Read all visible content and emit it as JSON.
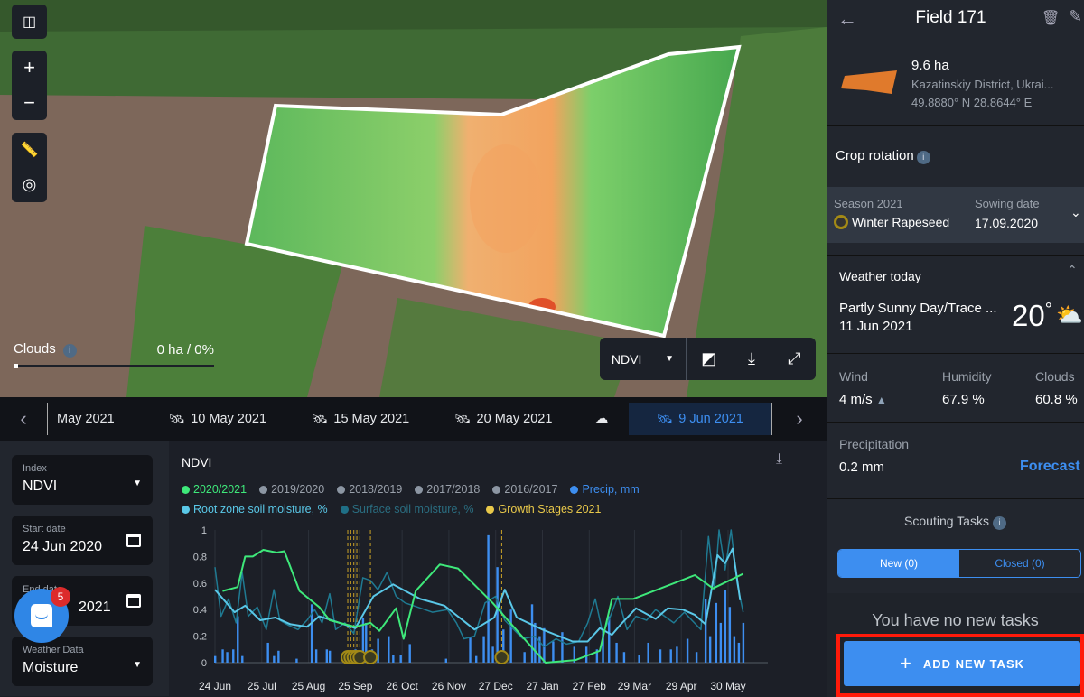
{
  "map": {
    "controls": {
      "compare": "compare-icon",
      "zoom_in": "+",
      "zoom_out": "−"
    },
    "clouds": {
      "label": "Clouds",
      "value": "0 ha / 0%",
      "fraction": 0
    },
    "toolbar": {
      "index": "NDVI"
    },
    "field_colors": {
      "low": "#f0a868",
      "mid": "#a6d96a",
      "high": "#4caf50",
      "border": "#ffffff"
    }
  },
  "datebar": {
    "items": [
      {
        "label": "May 2021",
        "icon": ""
      },
      {
        "label": "10 May 2021",
        "icon": "satellite-icon"
      },
      {
        "label": "15 May 2021",
        "icon": "satellite-icon"
      },
      {
        "label": "20 May 2021",
        "icon": "satellite-icon"
      },
      {
        "label": "",
        "icon": "cloud-icon"
      },
      {
        "label": "9 Jun 2021",
        "icon": "satellite-icon",
        "active": true
      }
    ]
  },
  "filters": {
    "index": {
      "label": "Index",
      "value": "NDVI"
    },
    "start": {
      "label": "Start date",
      "value": "24 Jun 2020"
    },
    "end": {
      "label": "End date",
      "value": "2021"
    },
    "weather": {
      "label": "Weather Data",
      "value": "Moisture"
    }
  },
  "chat": {
    "badge": "5"
  },
  "chart_data": {
    "type": "line",
    "title": "NDVI",
    "ylim": [
      0,
      1
    ],
    "yticks": [
      "0",
      "0.2",
      "0.4",
      "0.6",
      "0.8",
      "1"
    ],
    "xticks": [
      [
        "2020-06-24",
        "24 Jun"
      ],
      [
        "2020-07-25",
        "25 Jul"
      ],
      [
        "2020-08-25",
        "25 Aug"
      ],
      [
        "2020-09-25",
        "25 Sep"
      ],
      [
        "2020-10-26",
        "26 Oct"
      ],
      [
        "2020-11-26",
        "26 Nov"
      ],
      [
        "2020-12-27",
        "27 Dec"
      ],
      [
        "2021-01-27",
        "27 Jan"
      ],
      [
        "2021-02-27",
        "27 Feb"
      ],
      [
        "2021-03-29",
        "29 Mar"
      ],
      [
        "2021-04-29",
        "29 Apr"
      ],
      [
        "2021-05-30",
        "30 May"
      ]
    ],
    "xlim": [
      "2020-06-24",
      "2021-06-24"
    ],
    "legend": [
      {
        "name": "2020/2021",
        "color": "#3ee87a"
      },
      {
        "name": "2019/2020",
        "color": "#8c96a3"
      },
      {
        "name": "2018/2019",
        "color": "#8c96a3"
      },
      {
        "name": "2017/2018",
        "color": "#8c96a3"
      },
      {
        "name": "2016/2017",
        "color": "#8c96a3"
      },
      {
        "name": "Precip, mm",
        "color": "#3d8ef0"
      },
      {
        "name": "Root zone soil moisture, %",
        "color": "#5ac8e8"
      },
      {
        "name": "Surface soil moisture, %",
        "color": "#1f6f86"
      },
      {
        "name": "Growth Stages 2021",
        "color": "#e8c84a"
      }
    ],
    "series": [
      {
        "name": "Surface soil moisture, %",
        "color": "#1f7a92",
        "points": [
          [
            "2020-06-24",
            0.72
          ],
          [
            "2020-06-28",
            0.35
          ],
          [
            "2020-07-03",
            0.48
          ],
          [
            "2020-07-08",
            0.3
          ],
          [
            "2020-07-12",
            0.68
          ],
          [
            "2020-07-16",
            0.35
          ],
          [
            "2020-07-22",
            0.42
          ],
          [
            "2020-07-28",
            0.25
          ],
          [
            "2020-08-02",
            0.55
          ],
          [
            "2020-08-06",
            0.32
          ],
          [
            "2020-08-12",
            0.28
          ],
          [
            "2020-08-18",
            0.25
          ],
          [
            "2020-08-24",
            0.32
          ],
          [
            "2020-08-29",
            0.4
          ],
          [
            "2020-09-03",
            0.3
          ],
          [
            "2020-09-08",
            0.52
          ],
          [
            "2020-09-12",
            0.25
          ],
          [
            "2020-09-18",
            0.3
          ],
          [
            "2020-09-24",
            0.22
          ],
          [
            "2020-09-30",
            0.64
          ],
          [
            "2020-10-05",
            0.62
          ],
          [
            "2020-10-10",
            0.55
          ],
          [
            "2020-10-16",
            0.68
          ],
          [
            "2020-10-22",
            0.5
          ],
          [
            "2020-10-28",
            0.45
          ],
          [
            "2020-11-05",
            0.42
          ],
          [
            "2020-11-15",
            0.38
          ],
          [
            "2020-11-25",
            0.4
          ],
          [
            "2020-12-01",
            0.3
          ],
          [
            "2020-12-06",
            0.18
          ],
          [
            "2020-12-13",
            0.2
          ],
          [
            "2020-12-20",
            0.45
          ],
          [
            "2020-12-27",
            0.5
          ],
          [
            "2021-01-02",
            0.32
          ],
          [
            "2021-01-08",
            0.25
          ],
          [
            "2021-01-14",
            0.18
          ],
          [
            "2021-01-22",
            0.2
          ],
          [
            "2021-01-28",
            0.12
          ],
          [
            "2021-02-05",
            0.18
          ],
          [
            "2021-02-12",
            0.14
          ],
          [
            "2021-02-20",
            0.16
          ],
          [
            "2021-02-26",
            0.3
          ],
          [
            "2021-03-03",
            0.48
          ],
          [
            "2021-03-08",
            0.22
          ],
          [
            "2021-03-12",
            0.32
          ],
          [
            "2021-03-18",
            0.5
          ],
          [
            "2021-03-24",
            0.25
          ],
          [
            "2021-03-30",
            0.35
          ],
          [
            "2021-04-06",
            0.32
          ],
          [
            "2021-04-12",
            0.4
          ],
          [
            "2021-04-18",
            0.35
          ],
          [
            "2021-04-24",
            0.3
          ],
          [
            "2021-05-01",
            0.38
          ],
          [
            "2021-05-06",
            0.32
          ],
          [
            "2021-05-12",
            0.25
          ],
          [
            "2021-05-17",
            0.95
          ],
          [
            "2021-05-21",
            0.55
          ],
          [
            "2021-05-24",
            1.0
          ],
          [
            "2021-05-28",
            0.7
          ],
          [
            "2021-06-01",
            1.0
          ],
          [
            "2021-06-05",
            0.6
          ],
          [
            "2021-06-09",
            0.38
          ]
        ]
      },
      {
        "name": "Root zone soil moisture, %",
        "color": "#5ac8e8",
        "points": [
          [
            "2020-06-24",
            0.55
          ],
          [
            "2020-07-07",
            0.38
          ],
          [
            "2020-07-14",
            0.43
          ],
          [
            "2020-07-24",
            0.32
          ],
          [
            "2020-08-03",
            0.34
          ],
          [
            "2020-08-13",
            0.29
          ],
          [
            "2020-08-24",
            0.27
          ],
          [
            "2020-09-01",
            0.35
          ],
          [
            "2020-09-12",
            0.31
          ],
          [
            "2020-09-25",
            0.26
          ],
          [
            "2020-10-07",
            0.5
          ],
          [
            "2020-10-20",
            0.59
          ],
          [
            "2020-11-07",
            0.48
          ],
          [
            "2020-11-23",
            0.43
          ],
          [
            "2020-12-13",
            0.25
          ],
          [
            "2020-12-26",
            0.34
          ],
          [
            "2021-01-02",
            0.55
          ],
          [
            "2021-01-10",
            0.34
          ],
          [
            "2021-01-27",
            0.25
          ],
          [
            "2021-02-16",
            0.16
          ],
          [
            "2021-02-26",
            0.16
          ],
          [
            "2021-03-06",
            0.26
          ],
          [
            "2021-03-14",
            0.21
          ],
          [
            "2021-03-20",
            0.29
          ],
          [
            "2021-03-30",
            0.41
          ],
          [
            "2021-04-12",
            0.33
          ],
          [
            "2021-04-20",
            0.41
          ],
          [
            "2021-04-30",
            0.4
          ],
          [
            "2021-05-08",
            0.36
          ],
          [
            "2021-05-15",
            0.29
          ],
          [
            "2021-05-23",
            0.81
          ],
          [
            "2021-05-28",
            0.75
          ],
          [
            "2021-06-02",
            0.86
          ],
          [
            "2021-06-07",
            0.47
          ]
        ]
      },
      {
        "name": "2020/2021",
        "color": "#3ee87a",
        "points": [
          [
            "2020-06-29",
            0.54
          ],
          [
            "2020-07-09",
            0.57
          ],
          [
            "2020-07-14",
            0.8
          ],
          [
            "2020-07-19",
            0.8
          ],
          [
            "2020-07-26",
            0.85
          ],
          [
            "2020-08-04",
            0.83
          ],
          [
            "2020-08-09",
            0.84
          ],
          [
            "2020-08-19",
            0.54
          ],
          [
            "2020-09-01",
            0.42
          ],
          [
            "2020-09-08",
            0.32
          ],
          [
            "2020-09-25",
            0.27
          ],
          [
            "2020-10-05",
            0.3
          ],
          [
            "2020-10-11",
            0.24
          ],
          [
            "2020-10-22",
            0.41
          ],
          [
            "2020-10-27",
            0.18
          ],
          [
            "2020-11-04",
            0.54
          ],
          [
            "2020-11-20",
            0.74
          ],
          [
            "2020-12-02",
            0.71
          ],
          [
            "2020-12-25",
            0.45
          ],
          [
            "2021-01-11",
            0.23
          ],
          [
            "2021-01-29",
            0.0
          ],
          [
            "2021-02-18",
            0.02
          ],
          [
            "2021-03-06",
            0.09
          ],
          [
            "2021-03-14",
            0.48
          ],
          [
            "2021-03-28",
            0.48
          ],
          [
            "2021-05-08",
            0.66
          ],
          [
            "2021-05-20",
            0.56
          ],
          [
            "2021-06-09",
            0.67
          ]
        ]
      }
    ],
    "precip": [
      [
        "2020-06-24",
        0.05
      ],
      [
        "2020-06-29",
        0.1
      ],
      [
        "2020-07-02",
        0.08
      ],
      [
        "2020-07-06",
        0.1
      ],
      [
        "2020-07-09",
        0.35
      ],
      [
        "2020-07-12",
        0.05
      ],
      [
        "2020-07-29",
        0.15
      ],
      [
        "2020-08-02",
        0.05
      ],
      [
        "2020-08-05",
        0.09
      ],
      [
        "2020-08-17",
        0.03
      ],
      [
        "2020-08-27",
        0.44
      ],
      [
        "2020-08-30",
        0.1
      ],
      [
        "2020-09-06",
        0.1
      ],
      [
        "2020-09-08",
        0.09
      ],
      [
        "2020-09-25",
        0.1
      ],
      [
        "2020-09-30",
        0.34
      ],
      [
        "2020-10-02",
        0.3
      ],
      [
        "2020-10-06",
        0.1
      ],
      [
        "2020-10-10",
        0.18
      ],
      [
        "2020-10-17",
        0.2
      ],
      [
        "2020-10-20",
        0.06
      ],
      [
        "2020-10-25",
        0.06
      ],
      [
        "2020-10-31",
        0.14
      ],
      [
        "2020-11-24",
        0.03
      ],
      [
        "2020-12-10",
        0.19
      ],
      [
        "2020-12-14",
        0.05
      ],
      [
        "2020-12-19",
        0.2
      ],
      [
        "2020-12-22",
        0.96
      ],
      [
        "2020-12-25",
        0.12
      ],
      [
        "2020-12-28",
        0.72
      ],
      [
        "2021-01-01",
        0.25
      ],
      [
        "2021-01-06",
        0.4
      ],
      [
        "2021-01-15",
        0.08
      ],
      [
        "2021-01-20",
        0.44
      ],
      [
        "2021-01-22",
        0.3
      ],
      [
        "2021-01-25",
        0.2
      ],
      [
        "2021-01-28",
        0.26
      ],
      [
        "2021-02-03",
        0.16
      ],
      [
        "2021-02-09",
        0.23
      ],
      [
        "2021-02-17",
        0.12
      ],
      [
        "2021-02-25",
        0.12
      ],
      [
        "2021-03-04",
        0.1
      ],
      [
        "2021-03-08",
        0.23
      ],
      [
        "2021-03-12",
        0.35
      ],
      [
        "2021-03-17",
        0.15
      ],
      [
        "2021-03-22",
        0.08
      ],
      [
        "2021-04-01",
        0.06
      ],
      [
        "2021-04-07",
        0.15
      ],
      [
        "2021-04-15",
        0.1
      ],
      [
        "2021-04-22",
        0.1
      ],
      [
        "2021-04-26",
        0.12
      ],
      [
        "2021-05-03",
        0.18
      ],
      [
        "2021-05-09",
        0.08
      ],
      [
        "2021-05-15",
        0.48
      ],
      [
        "2021-05-18",
        0.2
      ],
      [
        "2021-05-22",
        0.45
      ],
      [
        "2021-05-25",
        0.3
      ],
      [
        "2021-05-28",
        0.55
      ],
      [
        "2021-05-31",
        0.42
      ],
      [
        "2021-06-03",
        0.2
      ],
      [
        "2021-06-06",
        0.15
      ],
      [
        "2021-06-09",
        0.3
      ]
    ],
    "growth_stages": [
      "2020-09-20",
      "2020-09-22",
      "2020-09-24",
      "2020-09-26",
      "2020-09-28",
      "2020-10-05",
      "2020-12-31"
    ]
  },
  "panel": {
    "title": "Field 171",
    "area": "9.6 ha",
    "location": "Kazatinskiy District, Ukrai...",
    "coords": "49.8880° N 28.8644° E",
    "crop_rotation": "Crop rotation",
    "season_label": "Season 2021",
    "crop": "Winter Rapeseed",
    "sowing_label": "Sowing date",
    "sowing_date": "17.09.2020",
    "weather_title": "Weather today",
    "weather_desc": "Partly Sunny Day/Trace ...",
    "weather_date": "11 Jun 2021",
    "temp": "20",
    "wind_label": "Wind",
    "wind": "4 m/s",
    "humidity_label": "Humidity",
    "humidity": "67.9 %",
    "clouds_label": "Clouds",
    "clouds": "60.8 %",
    "precip_label": "Precipitation",
    "precip": "0.2 mm",
    "forecast": "Forecast",
    "scouting": "Scouting Tasks",
    "tab_new": "New (0)",
    "tab_closed": "Closed (0)",
    "empty": "You have no new tasks",
    "add": "ADD NEW TASK",
    "accent": "#3d8ef0",
    "highlight": "#ff1a0a"
  }
}
